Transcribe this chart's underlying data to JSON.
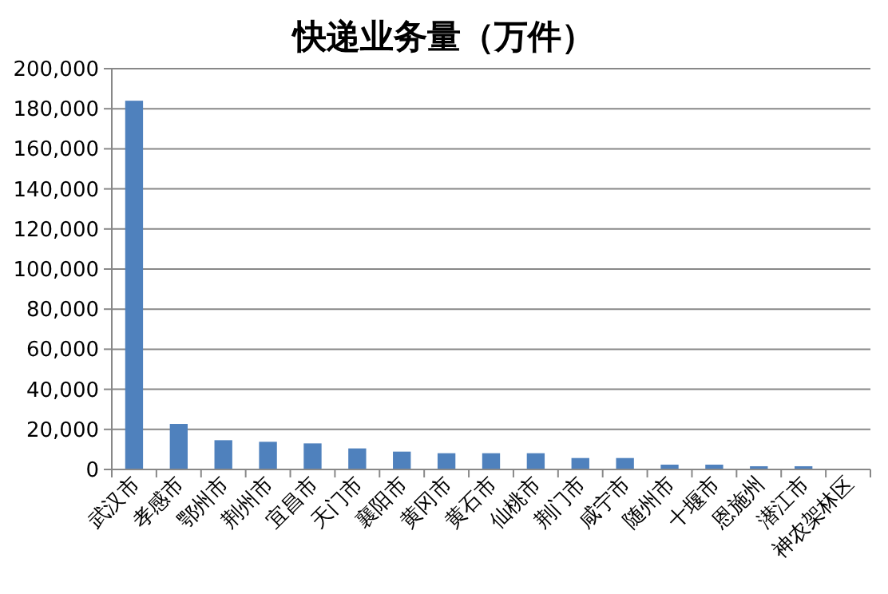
{
  "chart_data": {
    "type": "bar",
    "title": "快递业务量（万件）",
    "categories": [
      "武汉市",
      "孝感市",
      "鄂州市",
      "荆州市",
      "宜昌市",
      "天门市",
      "襄阳市",
      "黄冈市",
      "黄石市",
      "仙桃市",
      "荆门市",
      "咸宁市",
      "随州市",
      "十堰市",
      "恩施州",
      "潜江市",
      "神农架林区"
    ],
    "values": [
      184000,
      22700,
      14600,
      13800,
      13000,
      10500,
      8900,
      8100,
      8100,
      8100,
      5700,
      5700,
      2400,
      2400,
      1600,
      1600,
      100
    ],
    "color": "#4f81bd",
    "ylim": [
      0,
      200000
    ],
    "yticks": [
      {
        "value": 0,
        "label": "0"
      },
      {
        "value": 20000,
        "label": "20,000"
      },
      {
        "value": 40000,
        "label": "40,000"
      },
      {
        "value": 60000,
        "label": "60,000"
      },
      {
        "value": 80000,
        "label": "80,000"
      },
      {
        "value": 100000,
        "label": "100,000"
      },
      {
        "value": 120000,
        "label": "120,000"
      },
      {
        "value": 140000,
        "label": "140,000"
      },
      {
        "value": 160000,
        "label": "160,000"
      },
      {
        "value": 180000,
        "label": "180,000"
      },
      {
        "value": 200000,
        "label": "200,000"
      }
    ],
    "grid": "y"
  }
}
